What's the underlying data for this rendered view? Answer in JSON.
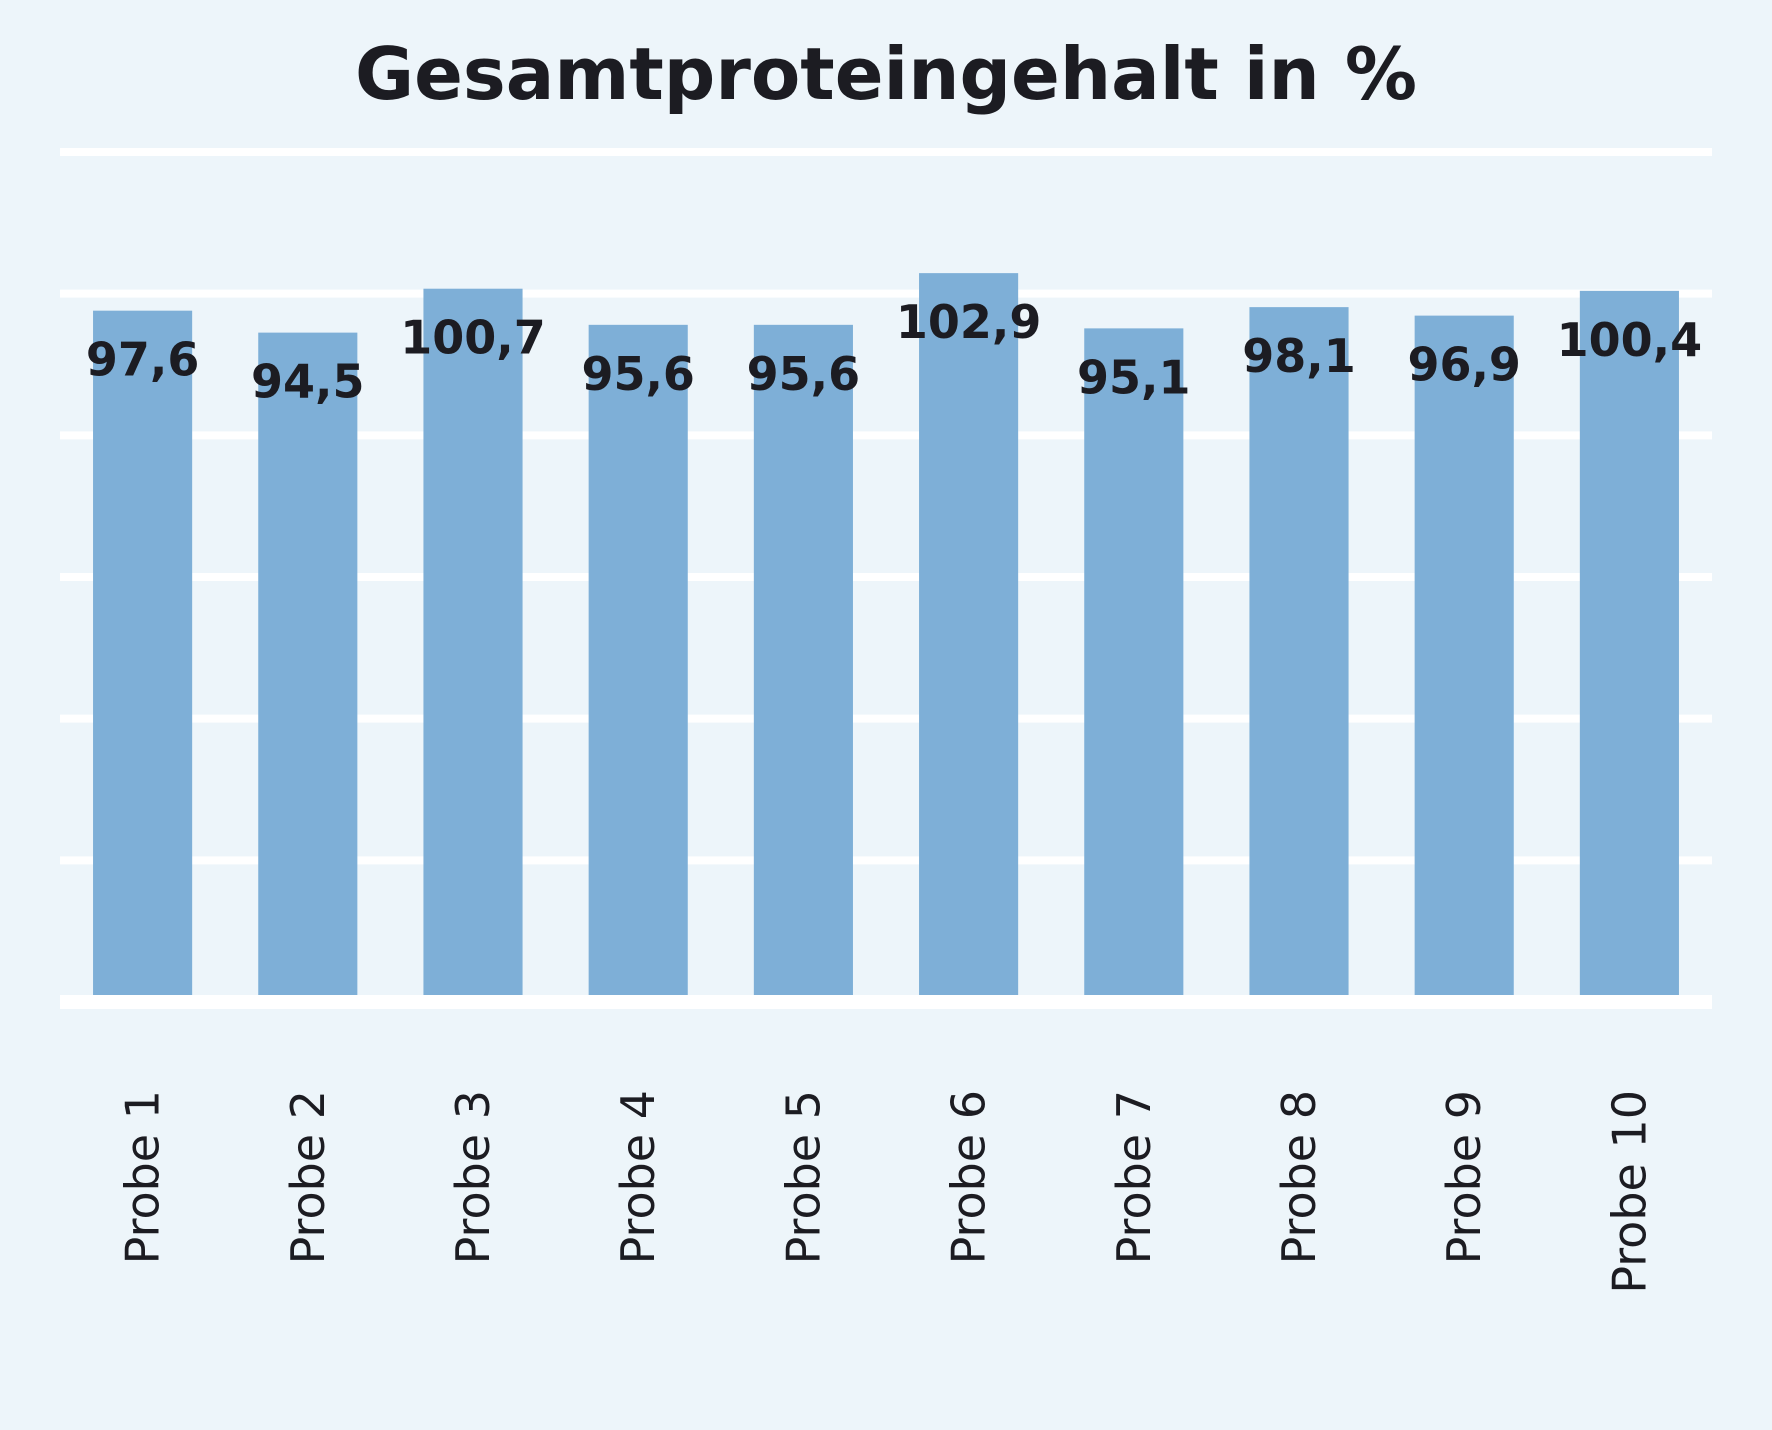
{
  "chart_data": {
    "type": "bar",
    "title": "Gesamtproteingehalt in %",
    "xlabel": "",
    "ylabel": "",
    "categories": [
      "Probe 1",
      "Probe 2",
      "Probe 3",
      "Probe 4",
      "Probe 5",
      "Probe 6",
      "Probe 7",
      "Probe 8",
      "Probe 9",
      "Probe 10"
    ],
    "values": [
      97.6,
      94.5,
      100.7,
      95.6,
      95.6,
      102.9,
      95.1,
      98.1,
      96.9,
      100.4
    ],
    "value_labels": [
      "97,6",
      "94,5",
      "100,7",
      "95,6",
      "95,6",
      "102,9",
      "95,1",
      "98,1",
      "96,9",
      "100,4"
    ],
    "ylim": [
      0,
      120
    ],
    "y_gridlines": [
      20,
      40,
      60,
      80,
      100,
      120
    ],
    "grid": true,
    "legend": "none",
    "tick_label_orientation": "vertical",
    "colors": {
      "bar": "#7eafd7",
      "background": "#edf5fa",
      "grid": "#ffffff",
      "text": "#1c1c22"
    }
  }
}
